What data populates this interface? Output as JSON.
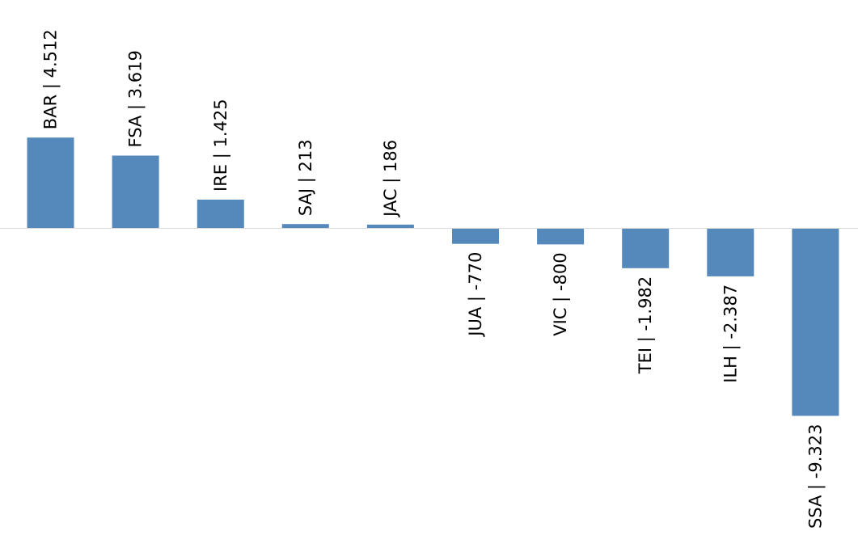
{
  "chart_data": {
    "type": "bar",
    "categories": [
      "BAR",
      "FSA",
      "IRE",
      "SAJ",
      "JAC",
      "JUA",
      "VIC",
      "TEI",
      "ILH",
      "SSA"
    ],
    "values": [
      4512,
      3619,
      1425,
      213,
      186,
      -770,
      -800,
      -1982,
      -2387,
      -9323
    ],
    "labels": [
      "BAR | 4.512",
      "FSA | 3.619",
      "IRE | 1.425",
      "SAJ | 213",
      "JAC | 186",
      "JUA | -770",
      "VIC | -800",
      "TEI | -1.982",
      "ILH | -2.387",
      "SSA | -9.323"
    ],
    "title": "",
    "xlabel": "",
    "ylabel": "",
    "ylim": [
      -10500,
      11300
    ],
    "grid": false,
    "legend": "none",
    "bar_color": "#5689BB",
    "baseline_color": "#D9D9D9"
  }
}
